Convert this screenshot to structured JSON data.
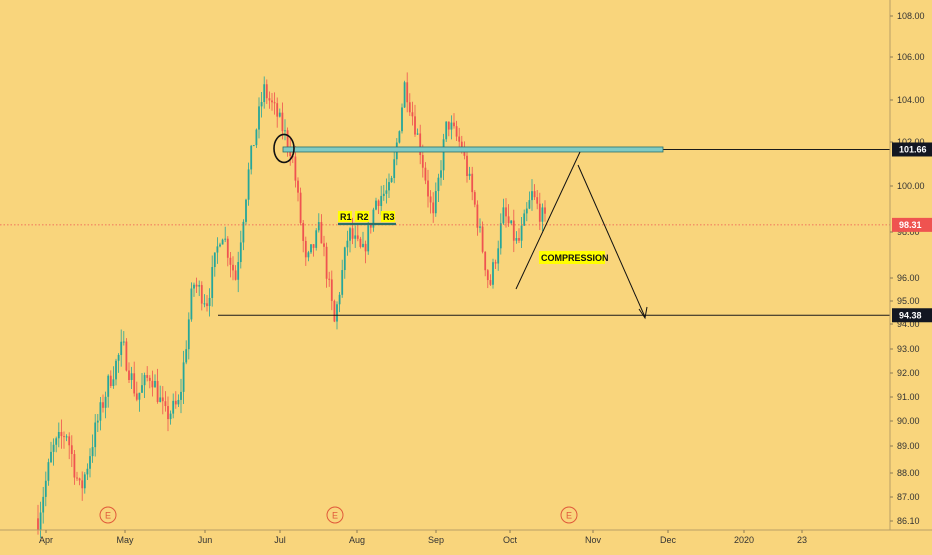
{
  "chart_data": {
    "type": "candlestick",
    "title": "",
    "xlabel": "",
    "ylabel": "",
    "x_ticks": [
      "Apr",
      "May",
      "Jun",
      "Jul",
      "Aug",
      "Sep",
      "Oct",
      "Nov",
      "Dec",
      "2020",
      "23"
    ],
    "y_ticks": [
      86.1,
      87.0,
      88.0,
      89.0,
      90.0,
      91.0,
      92.0,
      93.0,
      94.0,
      95.0,
      96.0,
      98.0,
      100.0,
      102.0,
      104.0,
      106.0,
      108.0
    ],
    "y_tick_labels": [
      "86.10",
      "87.00",
      "88.00",
      "89.00",
      "90.00",
      "91.00",
      "92.00",
      "93.00",
      "94.00",
      "95.00",
      "96.00",
      "98.00",
      "100.00",
      "102.00",
      "104.00",
      "106.00",
      "108.00"
    ],
    "price_path": [
      {
        "x": "Apr",
        "y": 86.2
      },
      {
        "x": "Apr",
        "y": 88.8
      },
      {
        "x": "Apr",
        "y": 89.6
      },
      {
        "x": "Apr",
        "y": 87.2
      },
      {
        "x": "May",
        "y": 89.5
      },
      {
        "x": "May",
        "y": 91.6
      },
      {
        "x": "May",
        "y": 93.1
      },
      {
        "x": "May",
        "y": 91.0
      },
      {
        "x": "May",
        "y": 92.0
      },
      {
        "x": "May",
        "y": 90.2
      },
      {
        "x": "Jun",
        "y": 90.7
      },
      {
        "x": "Jun",
        "y": 95.8
      },
      {
        "x": "Jun",
        "y": 95.0
      },
      {
        "x": "Jun",
        "y": 98.2
      },
      {
        "x": "Jun",
        "y": 96.0
      },
      {
        "x": "Jul",
        "y": 101.0
      },
      {
        "x": "Jul",
        "y": 104.5
      },
      {
        "x": "Jul",
        "y": 103.2
      },
      {
        "x": "Jul",
        "y": 101.5
      },
      {
        "x": "Aug",
        "y": 96.5
      },
      {
        "x": "Aug",
        "y": 98.2
      },
      {
        "x": "Aug",
        "y": 94.0
      },
      {
        "x": "Aug",
        "y": 98.0
      },
      {
        "x": "Aug",
        "y": 97.0
      },
      {
        "x": "Aug",
        "y": 99.5
      },
      {
        "x": "Sep",
        "y": 99.8
      },
      {
        "x": "Sep",
        "y": 104.8
      },
      {
        "x": "Sep",
        "y": 102.0
      },
      {
        "x": "Sep",
        "y": 98.5
      },
      {
        "x": "Sep",
        "y": 103.0
      },
      {
        "x": "Sep",
        "y": 101.8
      },
      {
        "x": "Oct",
        "y": 99.0
      },
      {
        "x": "Oct",
        "y": 95.6
      },
      {
        "x": "Oct",
        "y": 98.8
      },
      {
        "x": "Oct",
        "y": 97.4
      },
      {
        "x": "Oct",
        "y": 99.6
      },
      {
        "x": "Oct",
        "y": 98.31
      }
    ],
    "price_tags": [
      {
        "value": 101.66,
        "label": "101.66",
        "color": "#131722"
      },
      {
        "value": 98.31,
        "label": "98.31",
        "color": "#ef5350"
      },
      {
        "value": 94.38,
        "label": "94.38",
        "color": "#131722"
      }
    ],
    "annotations": {
      "r1": "R1",
      "r2": "R2",
      "r3": "R3",
      "compression": "COMPRESSION"
    },
    "earnings_markers": [
      "E",
      "E",
      "E"
    ],
    "colors": {
      "background": "#f9d57c",
      "up": "#26a69a",
      "down": "#ef5350",
      "resistance_box": "#80cbc4",
      "compression_label_bg": "#ffff00",
      "earnings": "#e05a3a"
    }
  }
}
